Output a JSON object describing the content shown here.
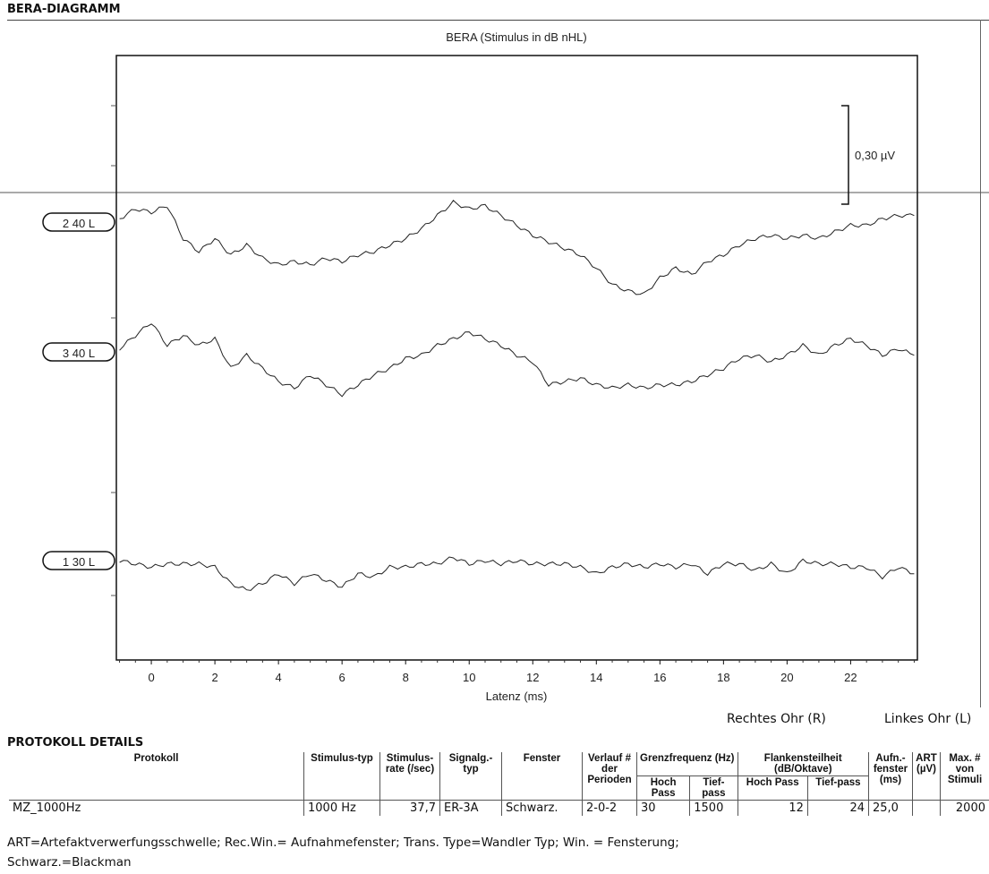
{
  "section_title": "BERA-DIAGRAMM",
  "chart_data": {
    "type": "line",
    "title": "BERA (Stimulus in dB nHL)",
    "xlabel": "Latenz (ms)",
    "xlim": [
      -1.1,
      24.1
    ],
    "xticks": [
      0,
      2,
      4,
      6,
      8,
      10,
      12,
      14,
      16,
      18,
      20,
      22
    ],
    "x_start": -1,
    "x_step": 0.5,
    "scale_bar_label": "0,30 µV",
    "scale_bar_value": 0.3,
    "series": [
      {
        "name": "2 40 L",
        "values": [
          0.01,
          0.04,
          0.03,
          0.05,
          -0.05,
          -0.09,
          -0.05,
          -0.1,
          -0.07,
          -0.11,
          -0.13,
          -0.12,
          -0.13,
          -0.11,
          -0.12,
          -0.1,
          -0.09,
          -0.07,
          -0.05,
          -0.02,
          0.02,
          0.06,
          0.04,
          0.05,
          0.02,
          -0.01,
          -0.04,
          -0.06,
          -0.08,
          -0.1,
          -0.14,
          -0.19,
          -0.21,
          -0.22,
          -0.17,
          -0.14,
          -0.16,
          -0.12,
          -0.1,
          -0.07,
          -0.05,
          -0.04,
          -0.05,
          -0.04,
          -0.05,
          -0.03,
          -0.01,
          -0.01,
          0.01,
          0.02,
          0.02
        ]
      },
      {
        "name": "3 40 L",
        "values": [
          0.01,
          0.05,
          0.09,
          0.02,
          0.05,
          0.02,
          0.04,
          -0.05,
          -0.01,
          -0.05,
          -0.09,
          -0.11,
          -0.07,
          -0.1,
          -0.13,
          -0.1,
          -0.07,
          -0.05,
          -0.02,
          -0.01,
          0.02,
          0.04,
          0.06,
          0.04,
          0.02,
          -0.01,
          -0.03,
          -0.1,
          -0.09,
          -0.08,
          -0.1,
          -0.11,
          -0.1,
          -0.11,
          -0.1,
          -0.1,
          -0.09,
          -0.07,
          -0.05,
          -0.02,
          -0.01,
          -0.03,
          -0.01,
          0.02,
          -0.01,
          0.02,
          0.04,
          0.02,
          -0.01,
          0.01,
          -0.01
        ]
      },
      {
        "name": "1 30 L",
        "values": [
          0.0,
          -0.01,
          -0.02,
          -0.01,
          -0.01,
          -0.01,
          -0.02,
          -0.07,
          -0.09,
          -0.07,
          -0.04,
          -0.07,
          -0.04,
          -0.06,
          -0.08,
          -0.04,
          -0.05,
          -0.02,
          -0.02,
          -0.01,
          -0.01,
          0.01,
          -0.01,
          0.0,
          -0.01,
          0.0,
          -0.01,
          -0.01,
          -0.01,
          -0.02,
          -0.04,
          -0.02,
          -0.01,
          -0.02,
          -0.01,
          -0.02,
          -0.01,
          -0.04,
          -0.01,
          -0.01,
          -0.03,
          -0.01,
          -0.04,
          0.0,
          -0.01,
          -0.01,
          -0.02,
          -0.02,
          -0.05,
          -0.02,
          -0.04
        ]
      }
    ]
  },
  "legend": {
    "right": "Rechtes Ohr (R)",
    "left": "Linkes Ohr (L)"
  },
  "protocol": {
    "title": "PROTOKOLL DETAILS",
    "headers": {
      "protokoll": "Protokoll",
      "stimtyp": "Stimulus-typ",
      "stimrate": "Stimulus-rate (/sec)",
      "signal": "Signalg.-typ",
      "fenster": "Fenster",
      "verlauf": "Verlauf # der Perioden",
      "grenz": "Grenzfrequenz (Hz)",
      "flanken": "Flankensteilheit (dB/Oktave)",
      "aufn": "Aufn.-fenster (ms)",
      "art": "ART (µV)",
      "max": "Max. # von Stimuli",
      "hoch": "Hoch Pass",
      "tief": "Tief-pass"
    },
    "row": {
      "protokoll": "MZ_1000Hz",
      "stimtyp": "1000 Hz",
      "stimrate": "37,7",
      "signal": "ER-3A",
      "fenster": "Schwarz.",
      "verlauf": "2-0-2",
      "g_hoch": "30",
      "g_tief": "1500",
      "f_hoch": "12",
      "f_tief": "24",
      "aufn": "25,0",
      "art": "",
      "max": "2000"
    },
    "footnote1": "ART=Artefaktverwerfungsschwelle; Rec.Win.= Aufnahmefenster; Trans. Type=Wandler Typ; Win. = Fensterung;",
    "footnote2": "Schwarz.=Blackman"
  }
}
